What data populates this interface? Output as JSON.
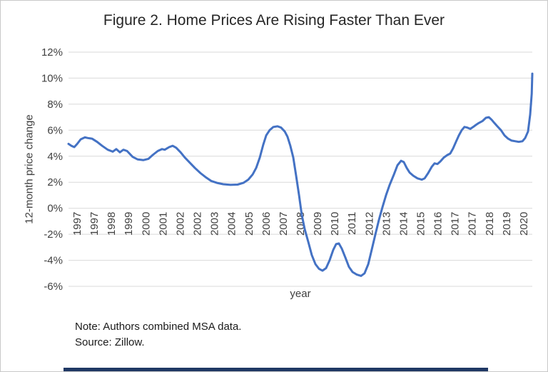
{
  "chart_data": {
    "type": "line",
    "title": "Figure 2. Home Prices Are Rising Faster Than Ever",
    "xlabel": "year",
    "ylabel": "12-month price change",
    "xlim": [
      1997,
      2021
    ],
    "ylim": [
      -6,
      12
    ],
    "grid": "horizontal",
    "legend": "none",
    "y_tick_values": [
      12,
      10,
      8,
      6,
      4,
      2,
      0,
      -2,
      -4,
      -6
    ],
    "y_tick_labels": [
      "12%",
      "10%",
      "8%",
      "6%",
      "4%",
      "2%",
      "0%",
      "-2%",
      "-4%",
      "-6%"
    ],
    "x_tick_labels": [
      "1997",
      "1997",
      "1998",
      "1999",
      "2000",
      "2001",
      "2002",
      "2002",
      "2003",
      "2004",
      "2005",
      "2006",
      "2007",
      "2008",
      "2009",
      "2010",
      "2011",
      "2012",
      "2013",
      "2014",
      "2015",
      "2016",
      "2017",
      "2017",
      "2018",
      "2019",
      "2020"
    ],
    "colors": {
      "line": "#4472c4",
      "grid": "#d9d9d9",
      "tick": "#404040",
      "accent_bar": "#1f3864"
    },
    "series": [
      {
        "name": "12-month price change",
        "points": [
          [
            1997.0,
            4.95
          ],
          [
            1997.15,
            4.8
          ],
          [
            1997.3,
            4.7
          ],
          [
            1997.45,
            4.95
          ],
          [
            1997.63,
            5.3
          ],
          [
            1997.85,
            5.45
          ],
          [
            1998.0,
            5.4
          ],
          [
            1998.22,
            5.35
          ],
          [
            1998.48,
            5.1
          ],
          [
            1998.74,
            4.8
          ],
          [
            1999.03,
            4.5
          ],
          [
            1999.29,
            4.35
          ],
          [
            1999.47,
            4.55
          ],
          [
            1999.66,
            4.3
          ],
          [
            1999.84,
            4.5
          ],
          [
            2000.03,
            4.4
          ],
          [
            2000.32,
            3.95
          ],
          [
            2000.58,
            3.75
          ],
          [
            2000.88,
            3.7
          ],
          [
            2001.14,
            3.8
          ],
          [
            2001.36,
            4.1
          ],
          [
            2001.62,
            4.4
          ],
          [
            2001.84,
            4.55
          ],
          [
            2001.98,
            4.5
          ],
          [
            2002.21,
            4.7
          ],
          [
            2002.39,
            4.8
          ],
          [
            2002.57,
            4.65
          ],
          [
            2002.8,
            4.3
          ],
          [
            2003.02,
            3.9
          ],
          [
            2003.28,
            3.5
          ],
          [
            2003.54,
            3.1
          ],
          [
            2003.83,
            2.7
          ],
          [
            2004.13,
            2.35
          ],
          [
            2004.38,
            2.1
          ],
          [
            2004.68,
            1.95
          ],
          [
            2005.01,
            1.85
          ],
          [
            2005.38,
            1.8
          ],
          [
            2005.75,
            1.82
          ],
          [
            2006.05,
            1.95
          ],
          [
            2006.3,
            2.2
          ],
          [
            2006.53,
            2.6
          ],
          [
            2006.71,
            3.1
          ],
          [
            2006.9,
            3.9
          ],
          [
            2007.08,
            4.9
          ],
          [
            2007.23,
            5.6
          ],
          [
            2007.41,
            6.0
          ],
          [
            2007.6,
            6.25
          ],
          [
            2007.82,
            6.3
          ],
          [
            2008.0,
            6.2
          ],
          [
            2008.19,
            5.9
          ],
          [
            2008.33,
            5.5
          ],
          [
            2008.48,
            4.8
          ],
          [
            2008.63,
            3.9
          ],
          [
            2008.78,
            2.5
          ],
          [
            2008.93,
            1.0
          ],
          [
            2009.07,
            -0.5
          ],
          [
            2009.22,
            -1.6
          ],
          [
            2009.41,
            -2.6
          ],
          [
            2009.59,
            -3.6
          ],
          [
            2009.78,
            -4.3
          ],
          [
            2009.96,
            -4.65
          ],
          [
            2010.14,
            -4.8
          ],
          [
            2010.33,
            -4.6
          ],
          [
            2010.51,
            -4.0
          ],
          [
            2010.7,
            -3.2
          ],
          [
            2010.85,
            -2.75
          ],
          [
            2010.99,
            -2.7
          ],
          [
            2011.14,
            -3.1
          ],
          [
            2011.33,
            -3.8
          ],
          [
            2011.51,
            -4.5
          ],
          [
            2011.7,
            -4.9
          ],
          [
            2011.92,
            -5.1
          ],
          [
            2012.14,
            -5.2
          ],
          [
            2012.32,
            -5.0
          ],
          [
            2012.51,
            -4.3
          ],
          [
            2012.69,
            -3.2
          ],
          [
            2012.88,
            -2.0
          ],
          [
            2013.06,
            -0.9
          ],
          [
            2013.25,
            0.1
          ],
          [
            2013.43,
            1.0
          ],
          [
            2013.62,
            1.8
          ],
          [
            2013.84,
            2.6
          ],
          [
            2014.02,
            3.3
          ],
          [
            2014.21,
            3.65
          ],
          [
            2014.35,
            3.55
          ],
          [
            2014.5,
            3.1
          ],
          [
            2014.65,
            2.75
          ],
          [
            2014.84,
            2.5
          ],
          [
            2015.06,
            2.3
          ],
          [
            2015.28,
            2.2
          ],
          [
            2015.43,
            2.3
          ],
          [
            2015.61,
            2.7
          ],
          [
            2015.8,
            3.2
          ],
          [
            2015.94,
            3.45
          ],
          [
            2016.09,
            3.4
          ],
          [
            2016.24,
            3.6
          ],
          [
            2016.42,
            3.9
          ],
          [
            2016.61,
            4.1
          ],
          [
            2016.75,
            4.2
          ],
          [
            2016.9,
            4.6
          ],
          [
            2017.05,
            5.1
          ],
          [
            2017.2,
            5.6
          ],
          [
            2017.35,
            6.0
          ],
          [
            2017.49,
            6.25
          ],
          [
            2017.64,
            6.2
          ],
          [
            2017.79,
            6.1
          ],
          [
            2017.94,
            6.25
          ],
          [
            2018.08,
            6.4
          ],
          [
            2018.23,
            6.55
          ],
          [
            2018.42,
            6.7
          ],
          [
            2018.6,
            6.95
          ],
          [
            2018.75,
            7.0
          ],
          [
            2018.9,
            6.8
          ],
          [
            2019.04,
            6.55
          ],
          [
            2019.19,
            6.3
          ],
          [
            2019.38,
            6.0
          ],
          [
            2019.56,
            5.6
          ],
          [
            2019.75,
            5.35
          ],
          [
            2019.93,
            5.2
          ],
          [
            2020.12,
            5.15
          ],
          [
            2020.3,
            5.1
          ],
          [
            2020.49,
            5.15
          ],
          [
            2020.63,
            5.4
          ],
          [
            2020.78,
            5.9
          ],
          [
            2020.89,
            7.2
          ],
          [
            2020.97,
            8.8
          ],
          [
            2021.0,
            10.35
          ]
        ]
      }
    ]
  },
  "notes": {
    "line1": "Note: Authors combined MSA data.",
    "line2": "Source: Zillow."
  }
}
